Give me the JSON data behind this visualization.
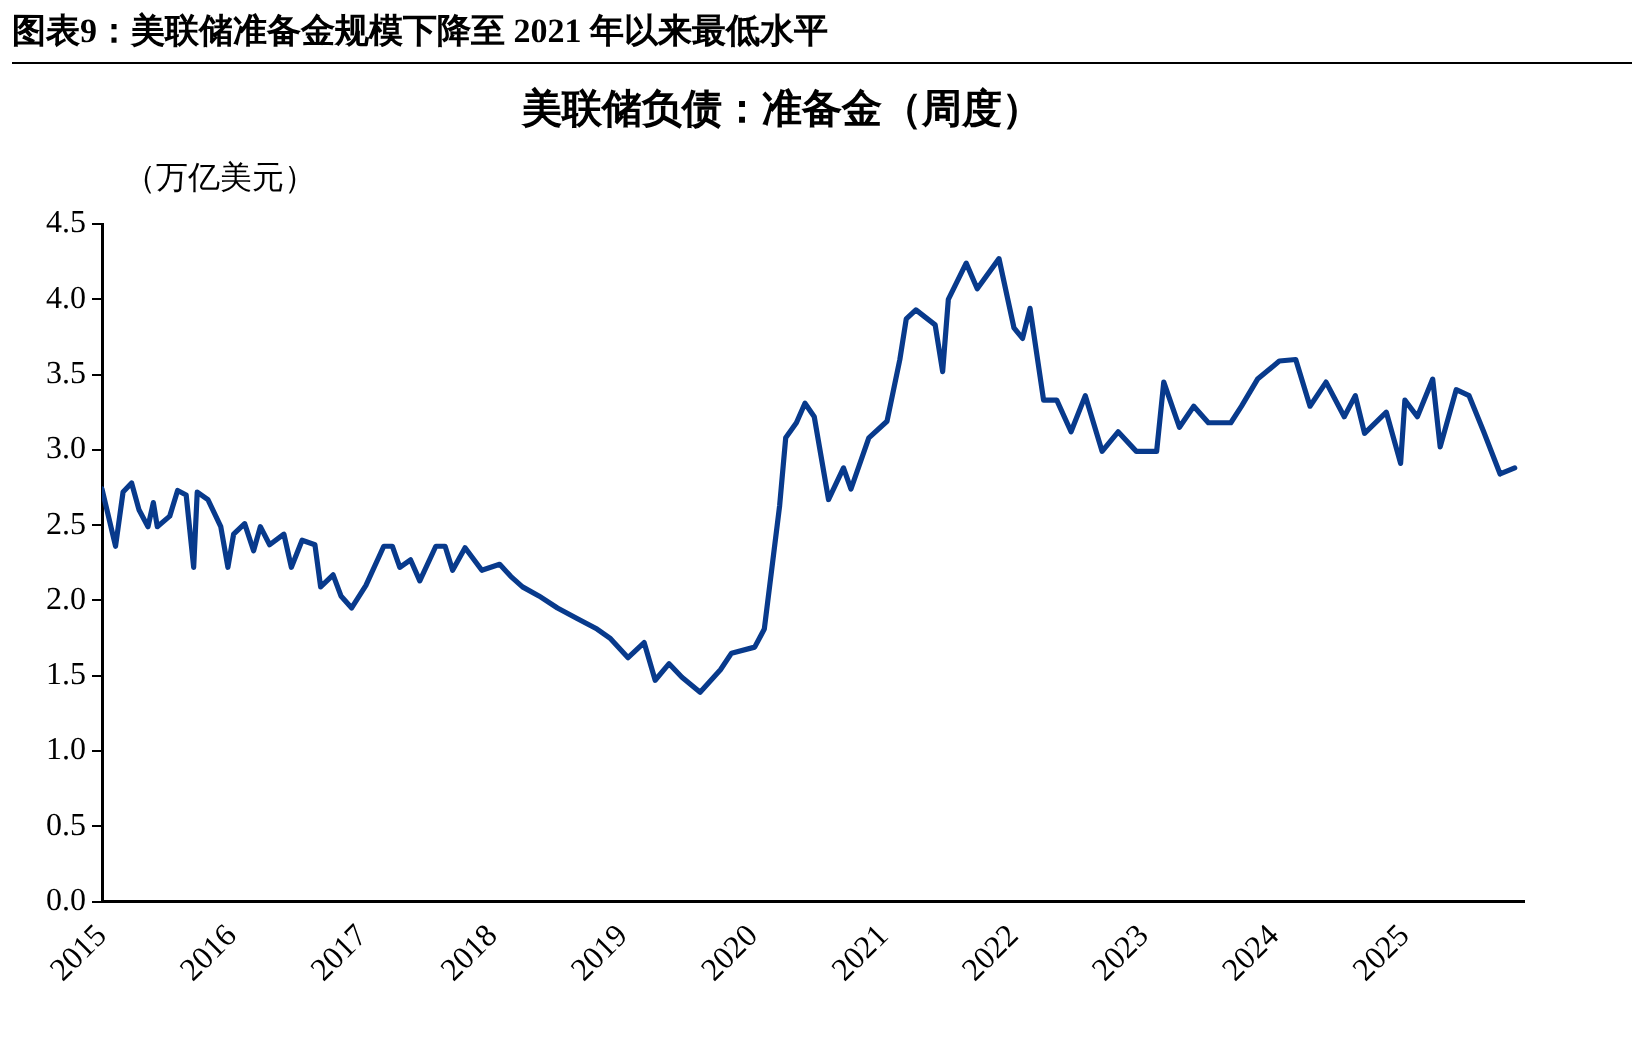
{
  "chart_data": {
    "type": "line",
    "title": "图表9：美联储准备金规模下降至 2021 年以来最低水平",
    "subtitle": "美联储负债：准备金（周度）",
    "ylabel": "（万亿美元）",
    "x": [
      "2015-01-01",
      "2015-02-08",
      "2015-03-01",
      "2015-03-25",
      "2015-04-15",
      "2015-05-10",
      "2015-05-25",
      "2015-06-05",
      "2015-07-10",
      "2015-08-01",
      "2015-08-25",
      "2015-09-15",
      "2015-09-25",
      "2015-10-25",
      "2015-11-30",
      "2015-12-20",
      "2016-01-05",
      "2016-02-05",
      "2016-03-01",
      "2016-03-20",
      "2016-04-15",
      "2016-05-25",
      "2016-06-15",
      "2016-07-15",
      "2016-08-20",
      "2016-09-05",
      "2016-10-10",
      "2016-11-01",
      "2016-12-01",
      "2017-01-10",
      "2017-03-01",
      "2017-03-25",
      "2017-04-15",
      "2017-05-15",
      "2017-06-10",
      "2017-07-25",
      "2017-08-20",
      "2017-09-10",
      "2017-10-15",
      "2017-12-01",
      "2018-01-20",
      "2018-02-20",
      "2018-03-25",
      "2018-05-10",
      "2018-07-01",
      "2018-08-25",
      "2018-10-20",
      "2018-11-25",
      "2019-01-15",
      "2019-03-01",
      "2019-04-01",
      "2019-05-10",
      "2019-06-15",
      "2019-08-05",
      "2019-10-01",
      "2019-11-01",
      "2020-01-05",
      "2020-02-01",
      "2020-03-15",
      "2020-04-01",
      "2020-05-01",
      "2020-05-25",
      "2020-06-20",
      "2020-07-30",
      "2020-09-10",
      "2020-10-01",
      "2020-11-20",
      "2021-01-10",
      "2021-02-15",
      "2021-03-05",
      "2021-04-01",
      "2021-05-25",
      "2021-06-15",
      "2021-07-01",
      "2021-08-20",
      "2021-09-20",
      "2021-11-20",
      "2022-01-01",
      "2022-01-25",
      "2022-02-15",
      "2022-03-25",
      "2022-05-01",
      "2022-06-10",
      "2022-07-20",
      "2022-09-05",
      "2022-10-20",
      "2022-12-10",
      "2023-02-05",
      "2023-02-25",
      "2023-04-10",
      "2023-05-20",
      "2023-06-30",
      "2023-09-01",
      "2023-10-01",
      "2023-11-15",
      "2024-01-15",
      "2024-03-01",
      "2024-04-10",
      "2024-05-25",
      "2024-07-15",
      "2024-08-15",
      "2024-09-10",
      "2024-11-10",
      "2024-12-20",
      "2025-01-01",
      "2025-02-05",
      "2025-03-20",
      "2025-04-10",
      "2025-05-25",
      "2025-06-30",
      "2025-08-10",
      "2025-09-25",
      "2025-11-05"
    ],
    "series": [
      {
        "color": "#083a8c",
        "values": [
          2.74,
          2.36,
          2.72,
          2.78,
          2.6,
          2.49,
          2.65,
          2.49,
          2.56,
          2.73,
          2.7,
          2.22,
          2.72,
          2.67,
          2.49,
          2.22,
          2.44,
          2.51,
          2.33,
          2.49,
          2.37,
          2.44,
          2.22,
          2.4,
          2.37,
          2.09,
          2.17,
          2.03,
          1.95,
          2.1,
          2.36,
          2.36,
          2.22,
          2.27,
          2.13,
          2.36,
          2.36,
          2.2,
          2.35,
          2.2,
          2.24,
          2.16,
          2.09,
          2.03,
          1.95,
          1.88,
          1.81,
          1.75,
          1.62,
          1.72,
          1.47,
          1.58,
          1.49,
          1.39,
          1.54,
          1.65,
          1.69,
          1.81,
          2.63,
          3.08,
          3.18,
          3.31,
          3.22,
          2.67,
          2.88,
          2.74,
          3.08,
          3.19,
          3.6,
          3.87,
          3.93,
          3.83,
          3.52,
          4.0,
          4.24,
          4.07,
          4.27,
          3.81,
          3.74,
          3.94,
          3.33,
          3.33,
          3.12,
          3.36,
          2.99,
          3.12,
          2.99,
          2.99,
          3.45,
          3.15,
          3.29,
          3.18,
          3.18,
          3.29,
          3.47,
          3.59,
          3.6,
          3.29,
          3.45,
          3.22,
          3.36,
          3.11,
          3.25,
          2.91,
          3.33,
          3.22,
          3.47,
          3.02,
          3.4,
          3.36,
          3.12,
          2.84,
          2.88
        ]
      }
    ],
    "xlim": [
      "2015-01-01",
      "2025-12-01"
    ],
    "xticks": [
      "2015",
      "2016",
      "2017",
      "2018",
      "2019",
      "2020",
      "2021",
      "2022",
      "2023",
      "2024",
      "2025"
    ],
    "ylim": [
      0,
      4.5
    ],
    "yticks": [
      {
        "value": 0,
        "label": "0.0"
      },
      {
        "value": 0.5,
        "label": "0.5"
      },
      {
        "value": 1,
        "label": "1.0"
      },
      {
        "value": 1.5,
        "label": "1.5"
      },
      {
        "value": 2,
        "label": "2.0"
      },
      {
        "value": 2.5,
        "label": "2.5"
      },
      {
        "value": 3,
        "label": "3.0"
      },
      {
        "value": 3.5,
        "label": "3.5"
      },
      {
        "value": 4,
        "label": "4.0"
      },
      {
        "value": 4.5,
        "label": "4.5"
      }
    ],
    "grid": false,
    "legend": false,
    "marker": "none",
    "line_style": "solid"
  }
}
